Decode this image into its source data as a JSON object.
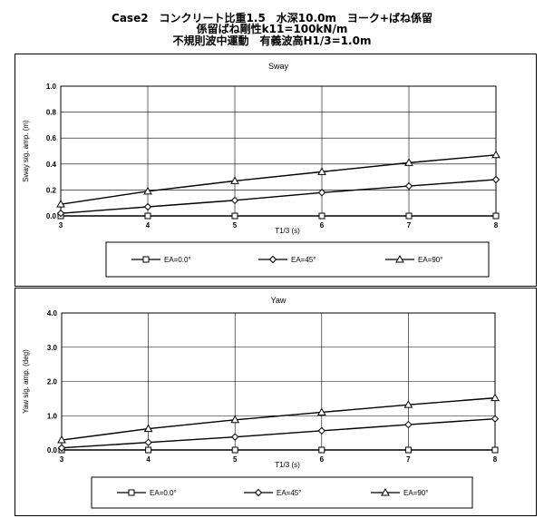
{
  "title_lines": [
    "Case2　コンクリート比重1.5　水深10.0m　ヨーク+ばね係留",
    "係留ばね剛性k11=100kN/m",
    "不規則波中運動　有義波高H1/3=1.0m"
  ],
  "chart_data": [
    {
      "type": "line",
      "title": "Sway",
      "xlabel": "T1/3 (s)",
      "ylabel": "Sway sig. amp. (m)",
      "x": [
        3,
        4,
        5,
        6,
        7,
        8
      ],
      "xlim": [
        3,
        8
      ],
      "ylim": [
        0,
        1.0
      ],
      "x_ticks": [
        "3",
        "4",
        "5",
        "6",
        "7",
        "8"
      ],
      "y_ticks": [
        "0.0",
        "0.2",
        "0.4",
        "0.6",
        "0.8",
        "1.0"
      ],
      "grid": true,
      "legend_position": "bottom",
      "series": [
        {
          "name": "EA=0.0°",
          "marker": "square",
          "values": [
            0.0,
            0.0,
            0.0,
            0.0,
            0.0,
            0.0
          ]
        },
        {
          "name": "EA=45°",
          "marker": "diamond",
          "values": [
            0.02,
            0.07,
            0.12,
            0.18,
            0.23,
            0.28
          ]
        },
        {
          "name": "EA=90°",
          "marker": "triangle",
          "values": [
            0.09,
            0.19,
            0.27,
            0.34,
            0.41,
            0.47
          ]
        }
      ]
    },
    {
      "type": "line",
      "title": "Yaw",
      "xlabel": "T1/3 (s)",
      "ylabel": "Yaw sig. amp. (deg)",
      "x": [
        3,
        4,
        5,
        6,
        7,
        8
      ],
      "xlim": [
        3,
        8
      ],
      "ylim": [
        0,
        4.0
      ],
      "x_ticks": [
        "3",
        "4",
        "5",
        "6",
        "7",
        "8"
      ],
      "y_ticks": [
        "0.0",
        "1.0",
        "2.0",
        "3.0",
        "4.0"
      ],
      "grid": true,
      "legend_position": "bottom",
      "series": [
        {
          "name": "EA=0.0°",
          "marker": "square",
          "values": [
            0.0,
            0.0,
            0.0,
            0.0,
            0.0,
            0.0
          ]
        },
        {
          "name": "EA=45°",
          "marker": "diamond",
          "values": [
            0.06,
            0.22,
            0.38,
            0.56,
            0.74,
            0.91
          ]
        },
        {
          "name": "EA=90°",
          "marker": "triangle",
          "values": [
            0.29,
            0.62,
            0.88,
            1.1,
            1.32,
            1.52
          ]
        }
      ]
    }
  ]
}
